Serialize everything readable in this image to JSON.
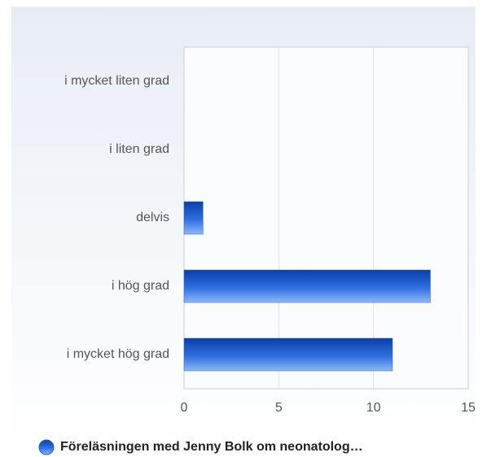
{
  "chart_data": {
    "type": "bar",
    "orientation": "horizontal",
    "categories": [
      "i mycket liten grad",
      "i liten grad",
      "delvis",
      "i hög grad",
      "i mycket hög grad"
    ],
    "series": [
      {
        "name": "Föreläsningen med Jenny Bolk om neonatolog…",
        "color": "#1f5fd6",
        "values": [
          0,
          0,
          1,
          13,
          11
        ]
      }
    ],
    "xlim": [
      0,
      15
    ],
    "xticks": [
      0,
      5,
      10,
      15
    ],
    "grid": true
  }
}
